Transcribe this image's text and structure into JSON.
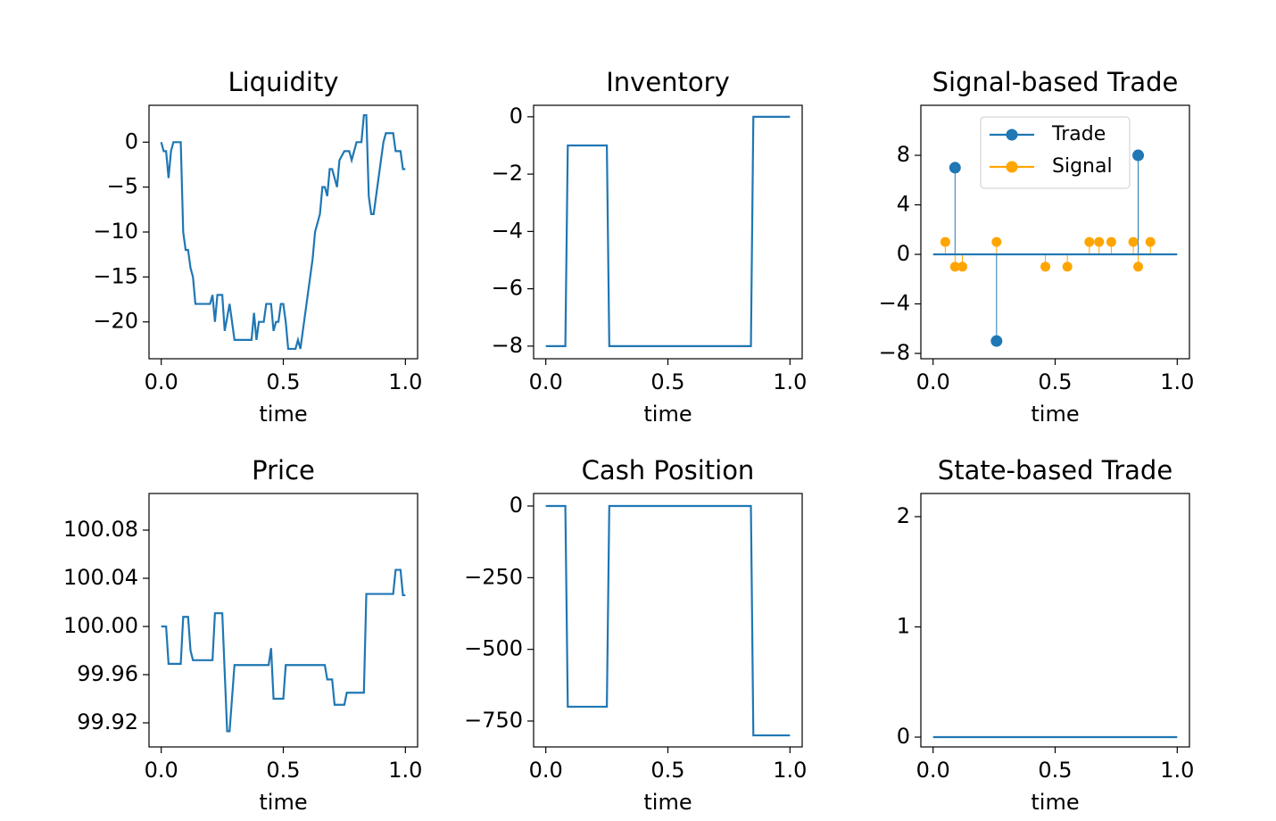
{
  "chart_data": [
    {
      "type": "line",
      "title": "Liquidity",
      "xlabel": "time",
      "color": "#1f77b4",
      "x": [
        0,
        0.01,
        0.02,
        0.03,
        0.04,
        0.05,
        0.08,
        0.09,
        0.1,
        0.11,
        0.12,
        0.13,
        0.14,
        0.2,
        0.21,
        0.22,
        0.23,
        0.25,
        0.26,
        0.28,
        0.3,
        0.37,
        0.38,
        0.39,
        0.4,
        0.42,
        0.43,
        0.45,
        0.46,
        0.47,
        0.48,
        0.49,
        0.5,
        0.51,
        0.52,
        0.55,
        0.56,
        0.57,
        0.6,
        0.61,
        0.62,
        0.63,
        0.65,
        0.66,
        0.67,
        0.68,
        0.69,
        0.7,
        0.72,
        0.73,
        0.75,
        0.77,
        0.78,
        0.8,
        0.82,
        0.83,
        0.84,
        0.85,
        0.86,
        0.87,
        0.89,
        0.91,
        0.92,
        0.95,
        0.96,
        0.98,
        0.99,
        1.0
      ],
      "values": [
        0,
        -1,
        -1,
        -4,
        -1,
        0,
        0,
        -10,
        -12,
        -12,
        -14,
        -15,
        -18,
        -18,
        -17,
        -20,
        -17,
        -17,
        -21,
        -18,
        -22,
        -22,
        -19,
        -22,
        -20,
        -20,
        -18,
        -18,
        -21,
        -20,
        -20,
        -18,
        -18,
        -20,
        -23,
        -23,
        -22,
        -23,
        -17,
        -15,
        -13,
        -10,
        -8,
        -5,
        -5,
        -6,
        -3,
        -3,
        -5,
        -2,
        -1,
        -1,
        -2,
        0,
        0,
        3,
        3,
        -6,
        -8,
        -8,
        -4,
        0,
        1,
        1,
        -1,
        -1,
        -3,
        -3
      ],
      "xlim": [
        -0.05,
        1.05
      ],
      "xticks": [
        {
          "value": 0,
          "label": "0.0"
        },
        {
          "value": 0.5,
          "label": "0.5"
        },
        {
          "value": 1,
          "label": "1.0"
        }
      ],
      "ylim": [
        -24.1,
        4.1
      ],
      "yticks": [
        0,
        {
          "value": -5,
          "label": "−5"
        },
        {
          "value": -10,
          "label": "−10"
        },
        {
          "value": -15,
          "label": "−15"
        },
        {
          "value": -20,
          "label": "−20"
        }
      ]
    },
    {
      "type": "line",
      "title": "Inventory",
      "xlabel": "time",
      "color": "#1f77b4",
      "x": [
        0,
        0.08,
        0.09,
        0.25,
        0.26,
        0.84,
        0.85,
        1.0
      ],
      "values": [
        -8,
        -8,
        -1,
        -1,
        -8,
        -8,
        0,
        0
      ],
      "xlim": [
        -0.05,
        1.05
      ],
      "xticks": [
        {
          "value": 0,
          "label": "0.0"
        },
        {
          "value": 0.5,
          "label": "0.5"
        },
        {
          "value": 1,
          "label": "1.0"
        }
      ],
      "ylim": [
        -8.44,
        0.4
      ],
      "yticks": [
        0,
        {
          "value": -2,
          "label": "−2"
        },
        {
          "value": -4,
          "label": "−4"
        },
        {
          "value": -6,
          "label": "−6"
        },
        {
          "value": -8,
          "label": "−8"
        }
      ]
    },
    {
      "type": "stem",
      "title": "Signal-based Trade",
      "xlabel": "time",
      "legend": "upper center",
      "series": [
        {
          "name": "Trade",
          "color": "#1f77b4",
          "x": [
            0.09,
            0.26,
            0.84
          ],
          "values": [
            7,
            -7,
            8
          ]
        },
        {
          "name": "Signal",
          "color": "#ffa500",
          "x": [
            0.05,
            0.09,
            0.12,
            0.26,
            0.46,
            0.55,
            0.64,
            0.68,
            0.73,
            0.82,
            0.84,
            0.89
          ],
          "values": [
            1,
            -1,
            -1,
            1,
            -1,
            -1,
            1,
            1,
            1,
            1,
            -1,
            1
          ]
        }
      ],
      "xlim": [
        -0.05,
        1.05
      ],
      "xticks": [
        {
          "value": 0,
          "label": "0.0"
        },
        {
          "value": 0.5,
          "label": "0.5"
        },
        {
          "value": 1,
          "label": "1.0"
        }
      ],
      "ylim": [
        -8.43,
        12.04
      ],
      "yticks": [
        8,
        4,
        0,
        {
          "value": -4,
          "label": "−4"
        },
        {
          "value": -8,
          "label": "−8"
        }
      ]
    },
    {
      "type": "line",
      "title": "Price",
      "xlabel": "time",
      "color": "#1f77b4",
      "x": [
        0,
        0.02,
        0.03,
        0.08,
        0.09,
        0.11,
        0.12,
        0.13,
        0.21,
        0.22,
        0.25,
        0.27,
        0.28,
        0.3,
        0.44,
        0.45,
        0.46,
        0.5,
        0.51,
        0.67,
        0.68,
        0.7,
        0.71,
        0.75,
        0.76,
        0.83,
        0.84,
        0.95,
        0.96,
        0.98,
        0.99,
        1.0
      ],
      "values": [
        100,
        100,
        99.969,
        99.969,
        100.008,
        100.008,
        99.98,
        99.972,
        99.972,
        100.011,
        100.011,
        99.913,
        99.913,
        99.968,
        99.968,
        99.982,
        99.94,
        99.94,
        99.968,
        99.968,
        99.956,
        99.956,
        99.935,
        99.935,
        99.945,
        99.945,
        100.027,
        100.027,
        100.047,
        100.047,
        100.026,
        100.026
      ],
      "xlim": [
        -0.05,
        1.05
      ],
      "xticks": [
        {
          "value": 0,
          "label": "0.0"
        },
        {
          "value": 0.5,
          "label": "0.5"
        },
        {
          "value": 1,
          "label": "1.0"
        }
      ],
      "ylim": [
        99.9,
        100.1104
      ],
      "yticks": [
        100.08,
        100.04,
        {
          "value": 100,
          "label": "100.00"
        },
        99.96,
        99.92
      ]
    },
    {
      "type": "line",
      "title": "Cash Position",
      "xlabel": "time",
      "color": "#1f77b4",
      "x": [
        0,
        0.08,
        0.09,
        0.25,
        0.26,
        0.84,
        0.85,
        1.0
      ],
      "values": [
        0,
        0,
        -700,
        -700,
        0,
        0,
        -800,
        -800
      ],
      "xlim": [
        -0.05,
        1.05
      ],
      "xticks": [
        {
          "value": 0,
          "label": "0.0"
        },
        {
          "value": 0.5,
          "label": "0.5"
        },
        {
          "value": 1,
          "label": "1.0"
        }
      ],
      "ylim": [
        -840.3,
        43.6
      ],
      "yticks": [
        0,
        {
          "value": -250,
          "label": "−250"
        },
        {
          "value": -500,
          "label": "−500"
        },
        {
          "value": -750,
          "label": "−750"
        }
      ]
    },
    {
      "type": "line",
      "title": "State-based Trade",
      "xlabel": "time",
      "color": "#1f77b4",
      "x": [
        0,
        1.0
      ],
      "values": [
        0,
        0
      ],
      "xlim": [
        -0.05,
        1.05
      ],
      "xticks": [
        {
          "value": 0,
          "label": "0.0"
        },
        {
          "value": 0.5,
          "label": "0.5"
        },
        {
          "value": 1,
          "label": "1.0"
        }
      ],
      "ylim": [
        -0.089,
        2.21
      ],
      "yticks": [
        2,
        1,
        0
      ]
    }
  ]
}
